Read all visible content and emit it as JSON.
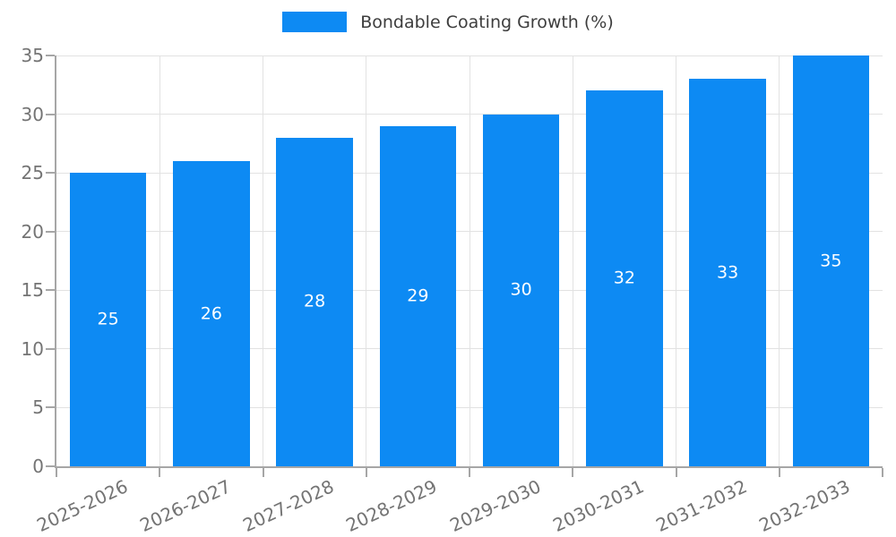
{
  "legend": {
    "label": "Bondable Coating Growth (%)"
  },
  "colors": {
    "bar": "#0d8af3",
    "grid": "#e2e2e2",
    "axis": "#a6a6a6",
    "tick_text": "#747474",
    "bar_label_text": "#ffffff",
    "legend_text": "#3d3d3d"
  },
  "chart_data": {
    "type": "bar",
    "title": "Bondable Coating Growth (%)",
    "categories": [
      "2025-2026",
      "2026-2027",
      "2027-2028",
      "2028-2029",
      "2029-2030",
      "2030-2031",
      "2031-2032",
      "2032-2033"
    ],
    "values": [
      25,
      26,
      28,
      29,
      30,
      32,
      33,
      35
    ],
    "xlabel": "",
    "ylabel": "",
    "ylim": [
      0,
      35
    ],
    "yticks": [
      0,
      5,
      10,
      15,
      20,
      25,
      30,
      35
    ],
    "grid": true,
    "legend_position": "top-center",
    "bar_value_labels": true,
    "x_tick_rotation_deg": -25
  }
}
